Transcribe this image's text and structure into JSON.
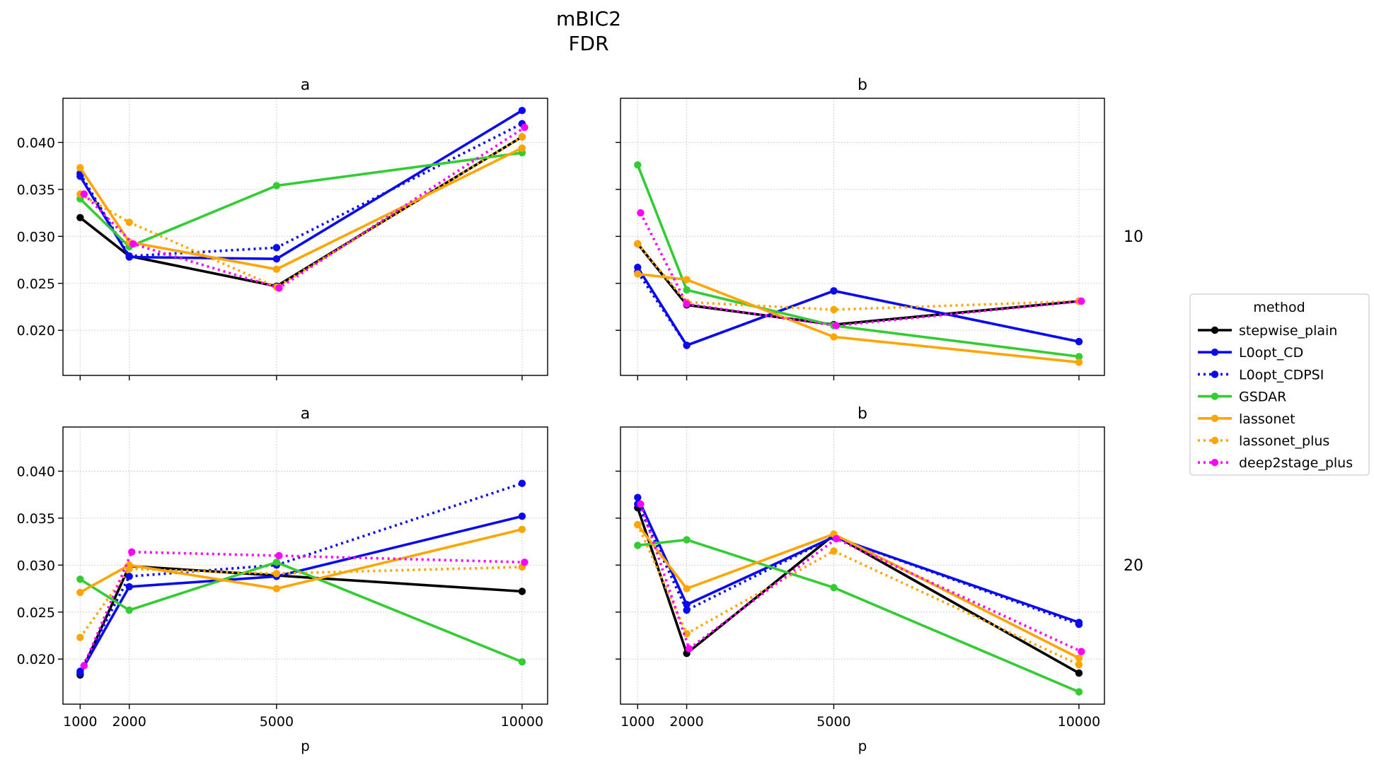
{
  "figure": {
    "title_line1": "mBIC2",
    "title_line2": "FDR"
  },
  "legend": {
    "title": "method",
    "position": "right"
  },
  "chart_data": [
    {
      "type": "line",
      "title": "a",
      "row_label": "10",
      "xlabel": "",
      "x": [
        1000,
        2000,
        5000,
        10000
      ],
      "xlim": [
        650,
        10520
      ],
      "ylim": [
        0.0152,
        0.0447
      ],
      "yticks": [
        0.02,
        0.025,
        0.03,
        0.035,
        0.04
      ],
      "grid": true,
      "series": [
        {
          "name": "stepwise_plain",
          "color": "#000000",
          "dash": "solid",
          "values": [
            0.032,
            0.0279,
            0.0247,
            0.0406
          ],
          "x_offset": [
            0,
            0,
            0,
            0
          ]
        },
        {
          "name": "L0opt_CD",
          "color": "#0a0af0",
          "dash": "solid",
          "values": [
            0.0364,
            0.0278,
            0.0276,
            0.0434
          ],
          "x_offset": [
            0,
            0,
            0,
            0
          ]
        },
        {
          "name": "L0opt_CDPSI",
          "color": "#0a0af0",
          "dash": "dotted",
          "values": [
            0.0367,
            0.0279,
            0.0288,
            0.042
          ],
          "x_offset": [
            0,
            0,
            0,
            0
          ]
        },
        {
          "name": "GSDAR",
          "color": "#33cc33",
          "dash": "solid",
          "values": [
            0.034,
            0.0289,
            0.0354,
            0.0389
          ],
          "x_offset": [
            0,
            0,
            0,
            0
          ]
        },
        {
          "name": "lassonet",
          "color": "#ffa500",
          "dash": "solid",
          "values": [
            0.0373,
            0.0294,
            0.0265,
            0.0394
          ],
          "x_offset": [
            0,
            0,
            0,
            0
          ]
        },
        {
          "name": "lassonet_plus",
          "color": "#ffa500",
          "dash": "dotted",
          "values": [
            0.0345,
            0.0315,
            0.0246,
            0.0406
          ],
          "x_offset": [
            0,
            0,
            0,
            0
          ]
        },
        {
          "name": "deep2stage_plus",
          "color": "#ff00ff",
          "dash": "dotted",
          "values": [
            0.0345,
            0.0292,
            0.0245,
            0.0416
          ],
          "x_offset": [
            80,
            80,
            50,
            50
          ]
        }
      ]
    },
    {
      "type": "line",
      "title": "b",
      "row_label": "10",
      "xlabel": "",
      "x": [
        1000,
        2000,
        5000,
        10000
      ],
      "xlim": [
        650,
        10520
      ],
      "ylim": [
        0.0152,
        0.0447
      ],
      "yticks": [
        0.02,
        0.025,
        0.03,
        0.035,
        0.04
      ],
      "grid": true,
      "series": [
        {
          "name": "stepwise_plain",
          "color": "#000000",
          "dash": "solid",
          "values": [
            0.0292,
            0.0227,
            0.0206,
            0.0231
          ],
          "x_offset": [
            0,
            0,
            0,
            0
          ]
        },
        {
          "name": "L0opt_CD",
          "color": "#0a0af0",
          "dash": "solid",
          "values": [
            0.0267,
            0.0184,
            0.0242,
            0.0188
          ],
          "x_offset": [
            0,
            0,
            0,
            0
          ]
        },
        {
          "name": "L0opt_CDPSI",
          "color": "#0a0af0",
          "dash": "dotted",
          "values": [
            0.0262,
            0.0184,
            0.0242,
            0.0188
          ],
          "x_offset": [
            0,
            0,
            0,
            0
          ]
        },
        {
          "name": "GSDAR",
          "color": "#33cc33",
          "dash": "solid",
          "values": [
            0.0376,
            0.0243,
            0.0205,
            0.0172
          ],
          "x_offset": [
            0,
            0,
            0,
            0
          ]
        },
        {
          "name": "lassonet",
          "color": "#ffa500",
          "dash": "solid",
          "values": [
            0.026,
            0.0254,
            0.0193,
            0.0166
          ],
          "x_offset": [
            0,
            0,
            0,
            0
          ]
        },
        {
          "name": "lassonet_plus",
          "color": "#ffa500",
          "dash": "dotted",
          "values": [
            0.0292,
            0.023,
            0.0222,
            0.0231
          ],
          "x_offset": [
            0,
            0,
            0,
            0
          ]
        },
        {
          "name": "deep2stage_plus",
          "color": "#ff00ff",
          "dash": "dotted",
          "values": [
            0.0325,
            0.0228,
            0.0205,
            0.0231
          ],
          "x_offset": [
            60,
            0,
            50,
            50
          ]
        }
      ]
    },
    {
      "type": "line",
      "title": "a",
      "row_label": "20",
      "xlabel": "p",
      "x": [
        1000,
        2000,
        5000,
        10000
      ],
      "xlim": [
        650,
        10520
      ],
      "ylim": [
        0.0152,
        0.0447
      ],
      "yticks": [
        0.02,
        0.025,
        0.03,
        0.035,
        0.04
      ],
      "xticks": [
        1000,
        2000,
        5000,
        10000
      ],
      "grid": true,
      "series": [
        {
          "name": "stepwise_plain",
          "color": "#000000",
          "dash": "solid",
          "values": [
            0.0183,
            0.0299,
            0.0289,
            0.0272
          ],
          "x_offset": [
            0,
            0,
            0,
            0
          ]
        },
        {
          "name": "L0opt_CD",
          "color": "#0a0af0",
          "dash": "solid",
          "values": [
            0.0185,
            0.0277,
            0.0288,
            0.0352
          ],
          "x_offset": [
            0,
            0,
            0,
            0
          ]
        },
        {
          "name": "L0opt_CDPSI",
          "color": "#0a0af0",
          "dash": "dotted",
          "values": [
            0.0187,
            0.0288,
            0.03,
            0.0387
          ],
          "x_offset": [
            0,
            0,
            0,
            0
          ]
        },
        {
          "name": "GSDAR",
          "color": "#33cc33",
          "dash": "solid",
          "values": [
            0.0285,
            0.0252,
            0.0303,
            0.0197
          ],
          "x_offset": [
            0,
            0,
            0,
            0
          ]
        },
        {
          "name": "lassonet",
          "color": "#ffa500",
          "dash": "solid",
          "values": [
            0.0271,
            0.03,
            0.0275,
            0.0338
          ],
          "x_offset": [
            0,
            0,
            0,
            0
          ]
        },
        {
          "name": "lassonet_plus",
          "color": "#ffa500",
          "dash": "dotted",
          "values": [
            0.0223,
            0.0296,
            0.0291,
            0.0298
          ],
          "x_offset": [
            0,
            0,
            0,
            0
          ]
        },
        {
          "name": "deep2stage_plus",
          "color": "#ff00ff",
          "dash": "dotted",
          "values": [
            0.0193,
            0.0314,
            0.031,
            0.0303
          ],
          "x_offset": [
            80,
            50,
            50,
            50
          ]
        }
      ]
    },
    {
      "type": "line",
      "title": "b",
      "row_label": "20",
      "xlabel": "p",
      "x": [
        1000,
        2000,
        5000,
        10000
      ],
      "xlim": [
        650,
        10520
      ],
      "ylim": [
        0.0152,
        0.0447
      ],
      "yticks": [
        0.02,
        0.025,
        0.03,
        0.035,
        0.04
      ],
      "xticks": [
        1000,
        2000,
        5000,
        10000
      ],
      "grid": true,
      "series": [
        {
          "name": "stepwise_plain",
          "color": "#000000",
          "dash": "solid",
          "values": [
            0.0361,
            0.0206,
            0.0332,
            0.0185
          ],
          "x_offset": [
            0,
            0,
            0,
            0
          ]
        },
        {
          "name": "L0opt_CD",
          "color": "#0a0af0",
          "dash": "solid",
          "values": [
            0.0372,
            0.0258,
            0.033,
            0.0239
          ],
          "x_offset": [
            0,
            0,
            0,
            0
          ]
        },
        {
          "name": "L0opt_CDPSI",
          "color": "#0a0af0",
          "dash": "dotted",
          "values": [
            0.0365,
            0.0252,
            0.033,
            0.0237
          ],
          "x_offset": [
            0,
            0,
            0,
            0
          ]
        },
        {
          "name": "GSDAR",
          "color": "#33cc33",
          "dash": "solid",
          "values": [
            0.0321,
            0.0327,
            0.0276,
            0.0165
          ],
          "x_offset": [
            0,
            0,
            0,
            0
          ]
        },
        {
          "name": "lassonet",
          "color": "#ffa500",
          "dash": "solid",
          "values": [
            0.0343,
            0.0275,
            0.0333,
            0.0201
          ],
          "x_offset": [
            0,
            0,
            0,
            0
          ]
        },
        {
          "name": "lassonet_plus",
          "color": "#ffa500",
          "dash": "dotted",
          "values": [
            0.0343,
            0.0227,
            0.0315,
            0.0194
          ],
          "x_offset": [
            0,
            0,
            0,
            0
          ]
        },
        {
          "name": "deep2stage_plus",
          "color": "#ff00ff",
          "dash": "dotted",
          "values": [
            0.0365,
            0.0211,
            0.0328,
            0.0208
          ],
          "x_offset": [
            60,
            50,
            50,
            50
          ]
        }
      ]
    }
  ]
}
